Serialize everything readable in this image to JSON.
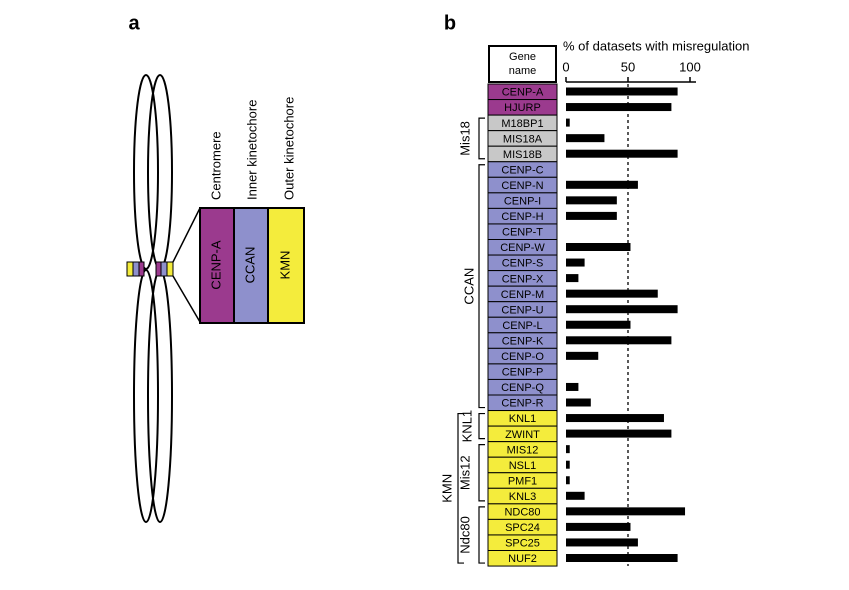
{
  "panel_labels": [
    "a",
    "b"
  ],
  "panel_a": {
    "column_labels": [
      "Centromere",
      "Inner kinetochore",
      "Outer kinetochore"
    ],
    "boxes": [
      "CENP-A",
      "CCAN",
      "KMN"
    ]
  },
  "chart_data": {
    "type": "bar",
    "orientation": "horizontal",
    "header": "Gene name",
    "x_label": "% of datasets with misregulation",
    "categories": [
      "CENP-A",
      "HJURP",
      "M18BP1",
      "MIS18A",
      "MIS18B",
      "CENP-C",
      "CENP-N",
      "CENP-I",
      "CENP-H",
      "CENP-T",
      "CENP-W",
      "CENP-S",
      "CENP-X",
      "CENP-M",
      "CENP-U",
      "CENP-L",
      "CENP-K",
      "CENP-O",
      "CENP-P",
      "CENP-Q",
      "CENP-R",
      "KNL1",
      "ZWINT",
      "MIS12",
      "NSL1",
      "PMF1",
      "KNL3",
      "NDC80",
      "SPC24",
      "SPC25",
      "NUF2"
    ],
    "values": [
      90,
      85,
      3,
      31,
      90,
      0,
      58,
      41,
      41,
      0,
      52,
      15,
      10,
      74,
      90,
      52,
      85,
      26,
      0,
      10,
      20,
      79,
      85,
      3,
      3,
      3,
      15,
      96,
      52,
      58,
      90
    ],
    "category_colors": [
      "#9b3a8e",
      "#9b3a8e",
      "#c8c8c8",
      "#c8c8c8",
      "#c8c8c8",
      "#8e90cc",
      "#8e90cc",
      "#8e90cc",
      "#8e90cc",
      "#8e90cc",
      "#8e90cc",
      "#8e90cc",
      "#8e90cc",
      "#8e90cc",
      "#8e90cc",
      "#8e90cc",
      "#8e90cc",
      "#8e90cc",
      "#8e90cc",
      "#8e90cc",
      "#8e90cc",
      "#f4ec3c",
      "#f4ec3c",
      "#f4ec3c",
      "#f4ec3c",
      "#f4ec3c",
      "#f4ec3c",
      "#f4ec3c",
      "#f4ec3c",
      "#f4ec3c",
      "#f4ec3c"
    ],
    "color": "#000000",
    "xlim": [
      0,
      100
    ],
    "xticks": [
      0,
      50,
      100
    ],
    "reference_line": 50,
    "groups": [
      "Mis18",
      "CCAN",
      "KNL1",
      "Mis12",
      "Ndc80",
      "KMN"
    ]
  }
}
